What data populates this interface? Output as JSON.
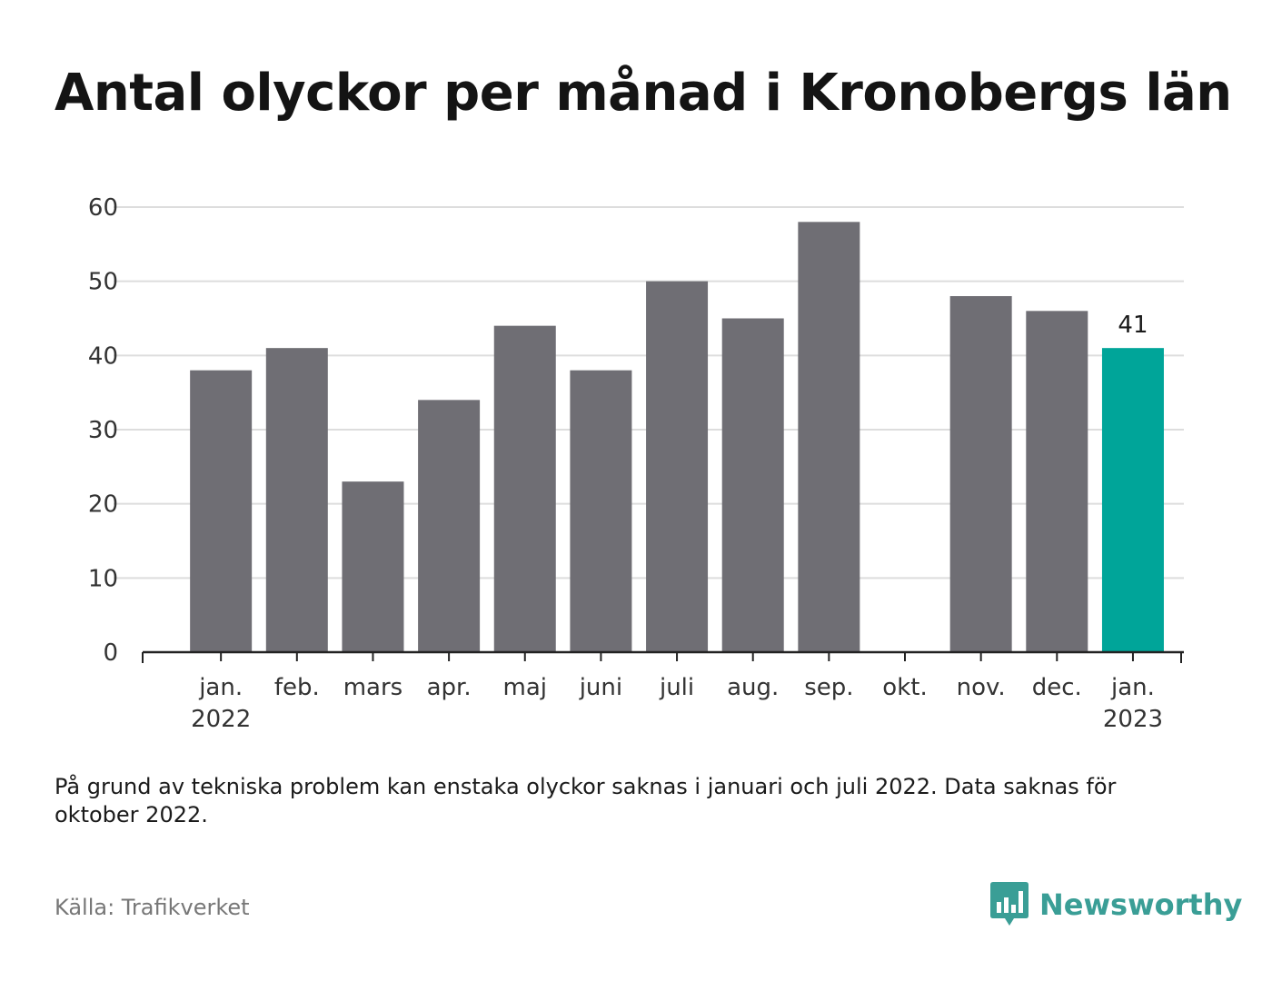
{
  "title": "Antal olyckor per månad i Kronobergs län",
  "chart_data": {
    "type": "bar",
    "categories": [
      [
        "jan.",
        "2022"
      ],
      [
        "feb.",
        ""
      ],
      [
        "mars",
        ""
      ],
      [
        "apr.",
        ""
      ],
      [
        "maj",
        ""
      ],
      [
        "juni",
        ""
      ],
      [
        "juli",
        ""
      ],
      [
        "aug.",
        ""
      ],
      [
        "sep.",
        ""
      ],
      [
        "okt.",
        ""
      ],
      [
        "nov.",
        ""
      ],
      [
        "dec.",
        ""
      ],
      [
        "jan.",
        "2023"
      ]
    ],
    "values": [
      38,
      41,
      23,
      34,
      44,
      38,
      50,
      45,
      58,
      null,
      48,
      46,
      41
    ],
    "highlight_index": 12,
    "data_labels": [
      {
        "index": 12,
        "text": "41"
      }
    ],
    "yticks": [
      0,
      10,
      20,
      30,
      40,
      50,
      60
    ],
    "ylim": [
      0,
      60
    ],
    "grid": true,
    "colors": {
      "bar": "#6f6e74",
      "highlight": "#00a599",
      "grid": "#dddddd",
      "axis": "#222222"
    }
  },
  "footnote": "På grund av tekniska problem kan enstaka olyckor saknas i januari och juli 2022. Data saknas för oktober 2022.",
  "source": "Källa: Trafikverket",
  "brand": {
    "name": "Newsworthy",
    "icon": "bar-chart-speech-bubble-icon",
    "color": "#3a9e96"
  }
}
